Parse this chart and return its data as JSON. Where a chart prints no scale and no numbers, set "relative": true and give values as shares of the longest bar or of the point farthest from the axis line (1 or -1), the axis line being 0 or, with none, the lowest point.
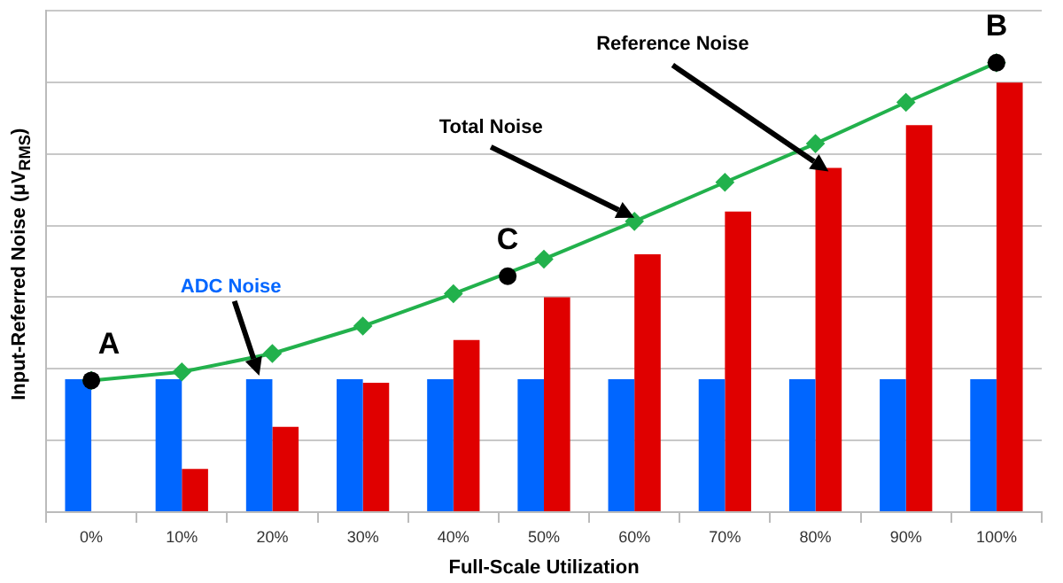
{
  "chart_data": {
    "type": "bar",
    "relative": true,
    "xlabel": "Full-Scale Utilization",
    "ylabel": "Input-Referred Noise (μV$_{RMS}$)",
    "categories": [
      "0%",
      "10%",
      "20%",
      "30%",
      "40%",
      "50%",
      "60%",
      "70%",
      "80%",
      "90%",
      "100%"
    ],
    "series": [
      {
        "name": "ADC Noise",
        "color": "#0066ff",
        "values": [
          0.296,
          0.296,
          0.296,
          0.296,
          0.296,
          0.296,
          0.296,
          0.296,
          0.296,
          0.296,
          0.296
        ]
      },
      {
        "name": "Reference Noise",
        "color": "#e00000",
        "values": [
          0,
          0.096,
          0.19,
          0.288,
          0.383,
          0.478,
          0.574,
          0.669,
          0.766,
          0.861,
          0.956
        ]
      },
      {
        "name": "Total Noise",
        "type": "line",
        "color": "#22b14c",
        "marker": "diamond",
        "values": [
          0.293,
          0.312,
          0.353,
          0.414,
          0.486,
          0.563,
          0.647,
          0.734,
          0.82,
          0.912,
          1
        ]
      }
    ],
    "annotations": [
      {
        "text": "A",
        "x": "0%",
        "y": 0.293
      },
      {
        "text": "B",
        "x": "100%",
        "y": 1
      },
      {
        "text": "C",
        "y": 0.525
      }
    ],
    "grid": "y",
    "legend": false
  }
}
